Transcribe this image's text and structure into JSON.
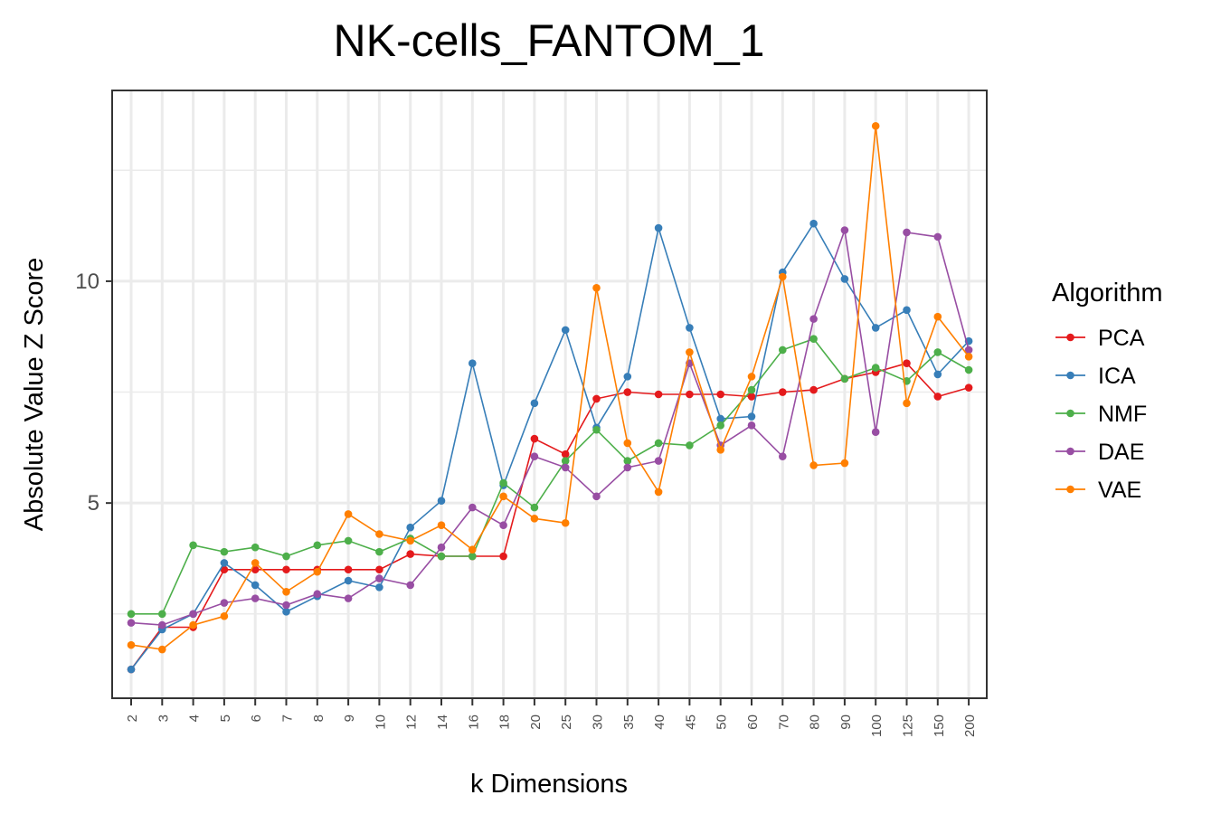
{
  "chart_data": {
    "type": "line",
    "title": "NK-cells_FANTOM_1",
    "xlabel": "k Dimensions",
    "ylabel": "Absolute Value Z Score",
    "legend_title": "Algorithm",
    "legend_position": "right",
    "grid": true,
    "ylim": [
      0.6,
      14.3
    ],
    "yticks": [
      5,
      10
    ],
    "y_minor_ticks": [
      2.5,
      7.5,
      12.5
    ],
    "categories": [
      "2",
      "3",
      "4",
      "5",
      "6",
      "7",
      "8",
      "9",
      "10",
      "12",
      "14",
      "16",
      "18",
      "20",
      "25",
      "30",
      "35",
      "40",
      "45",
      "50",
      "60",
      "70",
      "80",
      "90",
      "100",
      "125",
      "150",
      "200"
    ],
    "series": [
      {
        "name": "PCA",
        "color": "#E41A1C",
        "values": [
          1.25,
          2.2,
          2.2,
          3.5,
          3.5,
          3.5,
          3.5,
          3.5,
          3.5,
          3.85,
          3.8,
          3.8,
          3.8,
          6.45,
          6.1,
          7.35,
          7.5,
          7.45,
          7.45,
          7.45,
          7.4,
          7.5,
          7.55,
          7.8,
          7.95,
          8.15,
          7.4,
          7.6
        ]
      },
      {
        "name": "ICA",
        "color": "#377EB8",
        "values": [
          1.25,
          2.15,
          2.5,
          3.65,
          3.15,
          2.55,
          2.9,
          3.25,
          3.1,
          4.45,
          5.05,
          8.15,
          5.4,
          7.25,
          8.9,
          6.7,
          7.85,
          11.2,
          8.95,
          6.9,
          6.95,
          10.2,
          11.3,
          10.05,
          8.95,
          9.35,
          7.9,
          8.65
        ]
      },
      {
        "name": "NMF",
        "color": "#4DAF4A",
        "values": [
          2.5,
          2.5,
          4.05,
          3.9,
          4.0,
          3.8,
          4.05,
          4.15,
          3.9,
          4.2,
          3.8,
          3.8,
          5.45,
          4.9,
          5.95,
          6.65,
          5.95,
          6.35,
          6.3,
          6.75,
          7.55,
          8.45,
          8.7,
          7.8,
          8.05,
          7.75,
          8.4,
          8.0
        ]
      },
      {
        "name": "DAE",
        "color": "#984EA3",
        "values": [
          2.3,
          2.25,
          2.5,
          2.75,
          2.85,
          2.7,
          2.95,
          2.85,
          3.3,
          3.15,
          4.0,
          4.9,
          4.5,
          6.05,
          5.8,
          5.15,
          5.8,
          5.95,
          8.15,
          6.3,
          6.75,
          6.05,
          9.15,
          11.15,
          6.6,
          11.1,
          11.0,
          8.45
        ]
      },
      {
        "name": "VAE",
        "color": "#FF7F00",
        "values": [
          1.8,
          1.7,
          2.25,
          2.45,
          3.65,
          3.0,
          3.45,
          4.75,
          4.3,
          4.15,
          4.5,
          3.95,
          5.15,
          4.65,
          4.55,
          9.85,
          6.35,
          5.25,
          8.4,
          6.2,
          7.85,
          10.1,
          5.85,
          5.9,
          13.5,
          7.25,
          9.2,
          8.3
        ]
      }
    ]
  }
}
